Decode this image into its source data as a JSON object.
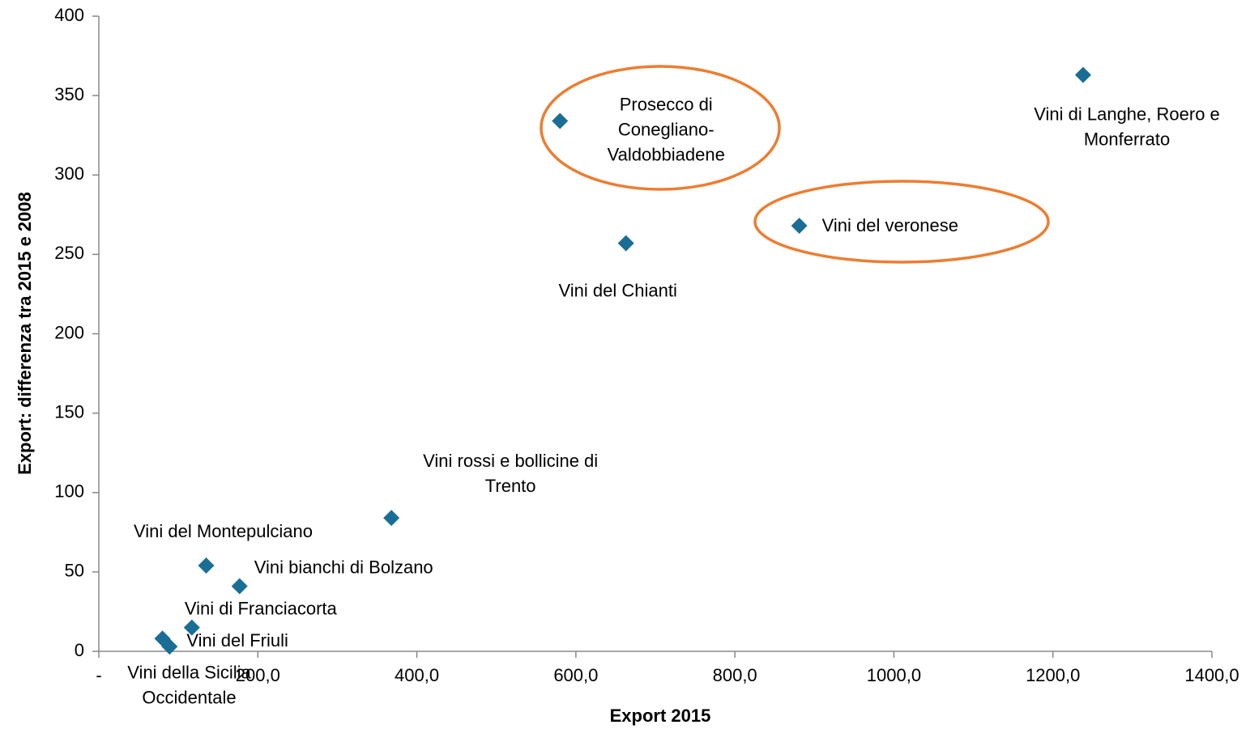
{
  "chart_data": {
    "type": "scatter",
    "x_label": "Export 2015",
    "y_label": "Export: differenza tra 2015 e 2008",
    "color": "#1a6e96",
    "xlim": [
      0,
      1400
    ],
    "xticks": [
      {
        "value": 0,
        "label": "-"
      },
      {
        "value": 200,
        "label": "200,0"
      },
      {
        "value": 400,
        "label": "400,0"
      },
      {
        "value": 600,
        "label": "600,0"
      },
      {
        "value": 800,
        "label": "800,0"
      },
      {
        "value": 1000,
        "label": "1000,0"
      },
      {
        "value": 1200,
        "label": "1200,0"
      },
      {
        "value": 1400,
        "label": "1400,0"
      }
    ],
    "ylim": [
      0,
      400
    ],
    "yticks": [
      0,
      50,
      100,
      150,
      200,
      250,
      300,
      350,
      400
    ],
    "grid": false,
    "labels": [
      [
        "Vini di Langhe, Roero e",
        "Monferrato"
      ],
      [
        "Prosecco di",
        "Conegliano-",
        "Valdobbiadene"
      ],
      [
        "Vini del veronese"
      ],
      [
        "Vini del Chianti"
      ],
      [
        "Vini rossi e bollicine di",
        "Trento"
      ],
      [
        "Vini del Montepulciano"
      ],
      [
        "Vini bianchi di Bolzano"
      ],
      [
        "Vini di Franciacorta"
      ],
      [
        "Vini del Friuli"
      ],
      [
        "Vini della Sicilia",
        "Occidentale"
      ]
    ],
    "x": [
      1238,
      580,
      881,
      663,
      368,
      135,
      177,
      117,
      89,
      80
    ],
    "y": [
      363,
      334,
      268,
      257,
      84,
      54,
      41,
      15,
      3,
      8
    ]
  }
}
